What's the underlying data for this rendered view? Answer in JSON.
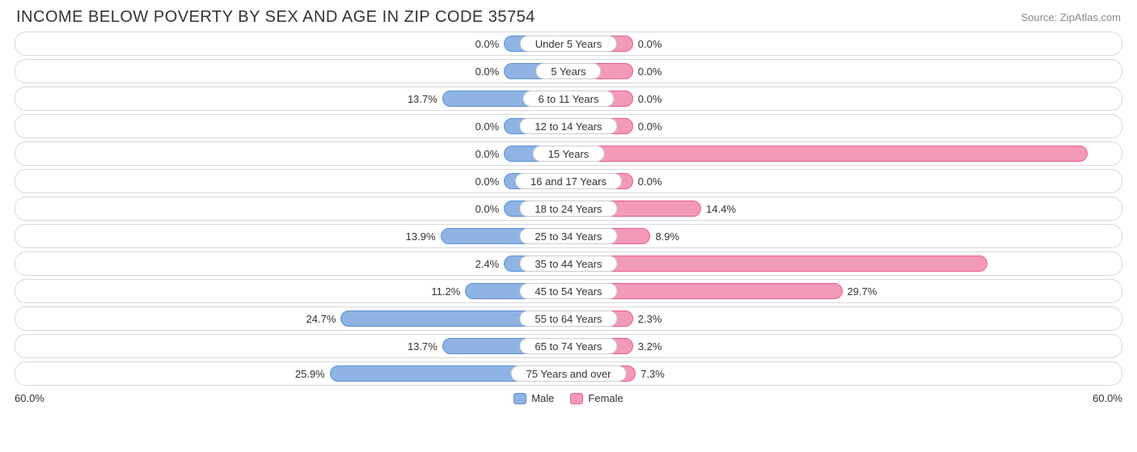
{
  "title": "INCOME BELOW POVERTY BY SEX AND AGE IN ZIP CODE 35754",
  "source": "Source: ZipAtlas.com",
  "chart": {
    "type": "bar",
    "orientation": "diverging-horizontal",
    "axis_max": 60.0,
    "axis_label_left": "60.0%",
    "axis_label_right": "60.0%",
    "min_bar_pct": 7.0,
    "background_color": "#ffffff",
    "row_border_color": "#d8d8d8",
    "row_border_radius": 14,
    "bar_border_radius": 11,
    "label_fontsize": 13,
    "title_fontsize": 20,
    "title_color": "#333333",
    "source_color": "#888888",
    "male": {
      "fill": "#8fb4e3",
      "border": "#5a8fd6",
      "legend": "Male"
    },
    "female": {
      "fill": "#f39ab8",
      "border": "#ea5d8d",
      "legend": "Female"
    },
    "rows": [
      {
        "category": "Under 5 Years",
        "male": 0.0,
        "female": 0.0
      },
      {
        "category": "5 Years",
        "male": 0.0,
        "female": 0.0
      },
      {
        "category": "6 to 11 Years",
        "male": 13.7,
        "female": 0.0
      },
      {
        "category": "12 to 14 Years",
        "male": 0.0,
        "female": 0.0
      },
      {
        "category": "15 Years",
        "male": 0.0,
        "female": 56.3
      },
      {
        "category": "16 and 17 Years",
        "male": 0.0,
        "female": 0.0
      },
      {
        "category": "18 to 24 Years",
        "male": 0.0,
        "female": 14.4
      },
      {
        "category": "25 to 34 Years",
        "male": 13.9,
        "female": 8.9
      },
      {
        "category": "35 to 44 Years",
        "male": 2.4,
        "female": 45.4
      },
      {
        "category": "45 to 54 Years",
        "male": 11.2,
        "female": 29.7
      },
      {
        "category": "55 to 64 Years",
        "male": 24.7,
        "female": 2.3
      },
      {
        "category": "65 to 74 Years",
        "male": 13.7,
        "female": 3.2
      },
      {
        "category": "75 Years and over",
        "male": 25.9,
        "female": 7.3
      }
    ]
  }
}
